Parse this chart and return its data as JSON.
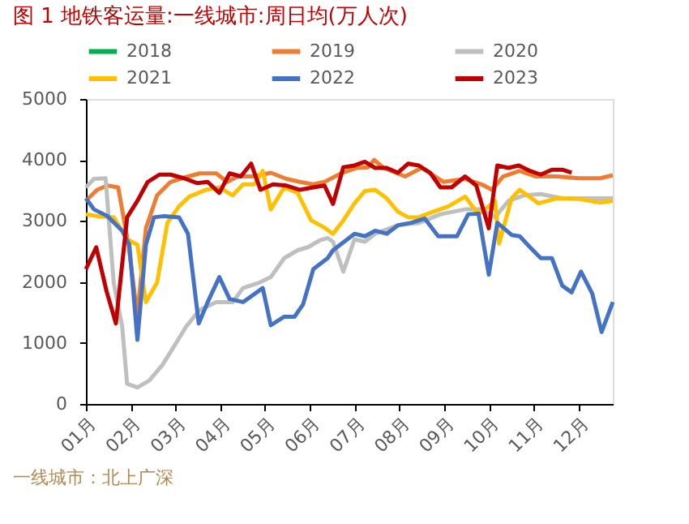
{
  "chart_data": {
    "type": "line",
    "title": "图 1 地铁客运量:一线城市:周日均(万人次)",
    "annotations": [
      "一线城市：北上广深"
    ],
    "xlim": [
      1,
      12.77
    ],
    "xticks": [
      {
        "value": 1,
        "label": "01月"
      },
      {
        "value": 2,
        "label": "02月"
      },
      {
        "value": 3,
        "label": "03月"
      },
      {
        "value": 4,
        "label": "04月"
      },
      {
        "value": 5,
        "label": "05月"
      },
      {
        "value": 6,
        "label": "06月"
      },
      {
        "value": 7,
        "label": "07月"
      },
      {
        "value": 8,
        "label": "08月"
      },
      {
        "value": 9,
        "label": "09月"
      },
      {
        "value": 10,
        "label": "10月"
      },
      {
        "value": 11,
        "label": "11月"
      },
      {
        "value": 12,
        "label": "12月"
      }
    ],
    "ylim": [
      0,
      5000
    ],
    "yticks": [
      0,
      1000,
      2000,
      3000,
      4000,
      5000
    ],
    "grid": false,
    "legend": "top",
    "marker": "none",
    "line_style": "solid",
    "series": [
      {
        "name": "2018",
        "color": "#00b050"
      },
      {
        "name": "2019",
        "color": "#ed7d31",
        "x": [
          1,
          1.25,
          1.48,
          1.72,
          1.95,
          2.15,
          2.34,
          2.59,
          2.89,
          3.19,
          3.54,
          3.91,
          4.16,
          4.39,
          4.76,
          5.13,
          5.48,
          5.78,
          6.08,
          6.33,
          6.7,
          7.05,
          7.3,
          7.44,
          7.65,
          8.13,
          8.5,
          8.99,
          9.47,
          9.84,
          10.07,
          10.32,
          10.69,
          11.04,
          11.52,
          12.01,
          12.49,
          12.77
        ],
        "values": [
          3330,
          3510,
          3580,
          3550,
          2610,
          1450,
          2880,
          3420,
          3640,
          3710,
          3780,
          3780,
          3640,
          3730,
          3730,
          3790,
          3690,
          3640,
          3600,
          3640,
          3780,
          3870,
          3880,
          4000,
          3870,
          3730,
          3870,
          3640,
          3690,
          3600,
          3510,
          3730,
          3820,
          3730,
          3730,
          3700,
          3700,
          3750
        ]
      },
      {
        "name": "2020",
        "color": "#bfbfbf",
        "x": [
          1,
          1.18,
          1.44,
          1.62,
          1.81,
          1.92,
          2.15,
          2.41,
          2.71,
          2.94,
          3.24,
          3.54,
          3.91,
          4.28,
          4.51,
          4.88,
          5.13,
          5.43,
          5.73,
          5.96,
          6.22,
          6.4,
          6.52,
          6.75,
          7.0,
          7.23,
          7.46,
          7.97,
          8.45,
          8.92,
          9.47,
          9.84,
          10.14,
          10.44,
          10.79,
          11.16,
          11.64,
          12.24,
          12.77
        ],
        "values": [
          3550,
          3690,
          3700,
          1990,
          1270,
          330,
          270,
          380,
          640,
          910,
          1270,
          1540,
          1670,
          1670,
          1900,
          1990,
          2080,
          2390,
          2520,
          2570,
          2680,
          2720,
          2660,
          2170,
          2700,
          2660,
          2790,
          2930,
          2970,
          3110,
          3190,
          3190,
          3060,
          3330,
          3420,
          3440,
          3370,
          3370,
          3370
        ]
      },
      {
        "name": "2021",
        "color": "#ffc000",
        "x": [
          1,
          1.25,
          1.62,
          1.92,
          2.15,
          2.34,
          2.59,
          2.82,
          3.08,
          3.31,
          3.68,
          3.98,
          4.28,
          4.51,
          4.76,
          4.95,
          5.13,
          5.43,
          5.73,
          6.03,
          6.33,
          6.52,
          6.75,
          7.0,
          7.23,
          7.46,
          7.72,
          7.97,
          8.2,
          8.43,
          8.75,
          9.1,
          9.47,
          9.77,
          10.0,
          10.14,
          10.23,
          10.51,
          10.69,
          11.11,
          11.52,
          12.01,
          12.49,
          12.77
        ],
        "values": [
          3110,
          3080,
          3060,
          2700,
          2610,
          1670,
          1990,
          2970,
          3240,
          3400,
          3510,
          3550,
          3420,
          3600,
          3600,
          3820,
          3190,
          3550,
          3460,
          3010,
          2890,
          2790,
          3010,
          3290,
          3490,
          3510,
          3370,
          3150,
          3060,
          3060,
          3150,
          3240,
          3400,
          3110,
          3240,
          3330,
          2630,
          3370,
          3510,
          3290,
          3370,
          3360,
          3300,
          3330
        ]
      },
      {
        "name": "2022",
        "color": "#4472c4",
        "x": [
          1,
          1.18,
          1.48,
          1.81,
          1.97,
          2.15,
          2.34,
          2.52,
          2.75,
          3.08,
          3.28,
          3.52,
          3.72,
          3.98,
          4.21,
          4.51,
          4.95,
          5.13,
          5.43,
          5.66,
          5.85,
          6.08,
          6.4,
          6.52,
          7.0,
          7.23,
          7.46,
          7.72,
          7.97,
          8.27,
          8.57,
          8.87,
          9.29,
          9.54,
          9.77,
          10.0,
          10.19,
          10.51,
          10.69,
          10.92,
          11.16,
          11.41,
          11.64,
          11.85,
          12.06,
          12.31,
          12.52,
          12.77
        ],
        "values": [
          3370,
          3190,
          3080,
          2840,
          2610,
          1050,
          2610,
          3060,
          3080,
          3060,
          2790,
          1320,
          1670,
          2080,
          1720,
          1670,
          1900,
          1290,
          1430,
          1430,
          1630,
          2210,
          2390,
          2520,
          2790,
          2750,
          2840,
          2790,
          2930,
          2970,
          3040,
          2750,
          2750,
          3110,
          3120,
          2120,
          2970,
          2770,
          2750,
          2570,
          2390,
          2390,
          1940,
          1830,
          2170,
          1810,
          1180,
          1670
        ]
      },
      {
        "name": "2023",
        "color": "#c00000",
        "x": [
          1,
          1.23,
          1.46,
          1.67,
          1.92,
          2.15,
          2.38,
          2.64,
          2.89,
          3.19,
          3.49,
          3.72,
          3.98,
          4.21,
          4.46,
          4.69,
          4.9,
          5.18,
          5.48,
          5.78,
          6.08,
          6.33,
          6.52,
          6.75,
          7.0,
          7.23,
          7.46,
          7.72,
          7.97,
          8.2,
          8.43,
          8.69,
          8.92,
          9.17,
          9.47,
          9.72,
          10.0,
          10.19,
          10.44,
          10.67,
          10.92,
          11.16,
          11.41,
          11.64,
          11.85
        ],
        "values": [
          2210,
          2570,
          1850,
          1320,
          3060,
          3330,
          3640,
          3760,
          3760,
          3700,
          3620,
          3640,
          3460,
          3780,
          3730,
          3940,
          3510,
          3600,
          3580,
          3510,
          3550,
          3580,
          3280,
          3880,
          3910,
          3970,
          3870,
          3870,
          3790,
          3940,
          3910,
          3790,
          3550,
          3550,
          3730,
          3580,
          2880,
          3910,
          3870,
          3910,
          3820,
          3760,
          3840,
          3840,
          3790
        ]
      }
    ]
  }
}
